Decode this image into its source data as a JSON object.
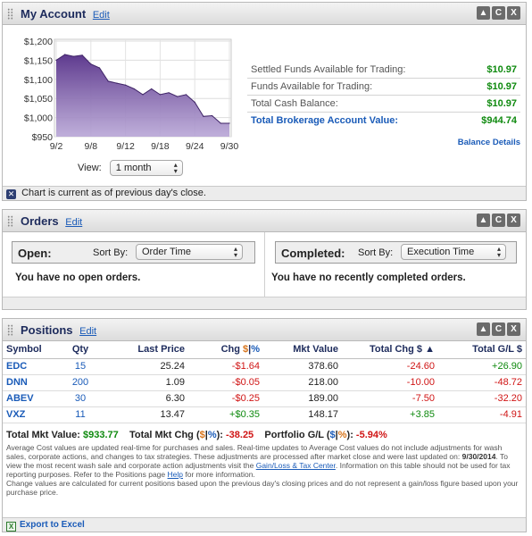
{
  "account": {
    "title": "My Account",
    "edit": "Edit",
    "buttons": [
      "▲",
      "C",
      "X"
    ],
    "view_label": "View:",
    "view_selected": "1 month",
    "balances": [
      {
        "label": "Settled Funds Available for Trading:",
        "value": "$10.97"
      },
      {
        "label": "Funds Available for Trading:",
        "value": "$10.97"
      },
      {
        "label": "Total Cash Balance:",
        "value": "$10.97"
      },
      {
        "label": "Total Brokerage Account Value:",
        "value": "$944.74"
      }
    ],
    "balance_details": "Balance Details",
    "footer": "Chart is current as of previous day's close."
  },
  "chart_data": {
    "type": "area",
    "x": [
      "9/2",
      "9/3",
      "9/4",
      "9/5",
      "9/8",
      "9/9",
      "9/10",
      "9/11",
      "9/12",
      "9/15",
      "9/16",
      "9/17",
      "9/18",
      "9/19",
      "9/22",
      "9/23",
      "9/24",
      "9/25",
      "9/26",
      "9/29",
      "9/30"
    ],
    "values": [
      1150,
      1165,
      1160,
      1163,
      1140,
      1130,
      1095,
      1090,
      1085,
      1075,
      1060,
      1075,
      1060,
      1065,
      1055,
      1060,
      1040,
      1003,
      1005,
      985,
      985
    ],
    "x_ticks": [
      "9/2",
      "9/8",
      "9/12",
      "9/18",
      "9/24",
      "9/30"
    ],
    "y_ticks": [
      "$1,200",
      "$1,150",
      "$1,100",
      "$1,050",
      "$1,000",
      "$950"
    ],
    "ylim": [
      950,
      1200
    ],
    "grid": true,
    "color": "#5e3a8e",
    "title": "",
    "xlabel": "",
    "ylabel": ""
  },
  "orders": {
    "title": "Orders",
    "edit": "Edit",
    "open_label": "Open:",
    "open_sort_label": "Sort By:",
    "open_sort_value": "Order Time",
    "open_msg": "You have no open orders.",
    "completed_label": "Completed:",
    "completed_sort_label": "Sort By:",
    "completed_sort_value": "Execution Time",
    "completed_msg": "You have no recently completed orders."
  },
  "positions": {
    "title": "Positions",
    "edit": "Edit",
    "headers": {
      "symbol": "Symbol",
      "qty": "Qty",
      "last": "Last Price",
      "chg": "Chg",
      "dollar": "$",
      "bar": "|",
      "pct": "%",
      "mkt": "Mkt Value",
      "total_chg": "Total Chg $",
      "sort_arrow": "▲",
      "total_gl": "Total G/L $"
    },
    "rows": [
      {
        "symbol": "EDC",
        "qty": "15",
        "last": "25.24",
        "chg": "-$1.64",
        "mkt": "378.60",
        "total_chg": "-24.60",
        "gl": "+26.90"
      },
      {
        "symbol": "DNN",
        "qty": "200",
        "last": "1.09",
        "chg": "-$0.05",
        "mkt": "218.00",
        "total_chg": "-10.00",
        "gl": "-48.72"
      },
      {
        "symbol": "ABEV",
        "qty": "30",
        "last": "6.30",
        "chg": "-$0.25",
        "mkt": "189.00",
        "total_chg": "-7.50",
        "gl": "-32.20"
      },
      {
        "symbol": "VXZ",
        "qty": "11",
        "last": "13.47",
        "chg": "+$0.35",
        "mkt": "148.17",
        "total_chg": "+3.85",
        "gl": "-4.91"
      }
    ],
    "totals": {
      "mkt_label": "Total Mkt Value:",
      "mkt_value": "$933.77",
      "chg_label": "Total Mkt Chg (",
      "chg_label_end": "):",
      "chg_value": "-38.25",
      "gl_label": "Portfolio G/L (",
      "gl_label_end": "):",
      "gl_value": "-5.94%"
    },
    "notes": {
      "p1a": "Average Cost values are updated real-time for purchases and sales. Real-time updates to Average Cost values do not include adjustments for wash sales, corporate actions, and changes to tax strategies. These adjustments are processed after market close and were last updated on:",
      "p1_date": "9/30/2014",
      "p1b": ". To view the most recent wash sale and corporate action adjustments visit the",
      "p1_link": "Gain/Loss & Tax Center",
      "p1c": ". Information on this table should not be used for tax reporting purposes. Refer to the Positions page",
      "p1_help": "Help",
      "p1d": "for more information.",
      "p2": "Change values are calculated for current positions based upon the previous day's closing prices and do not represent a gain/loss figure based upon your purchase price."
    },
    "export": "Export to Excel"
  }
}
